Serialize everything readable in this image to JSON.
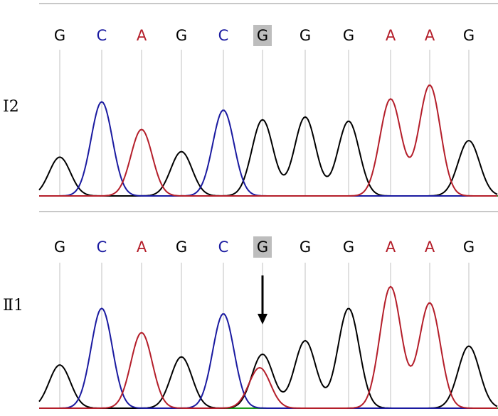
{
  "panels": [
    {
      "label": "Ⅰ2",
      "bases": [
        "G",
        "C",
        "A",
        "G",
        "C",
        "G",
        "G",
        "G",
        "A",
        "A",
        "G"
      ],
      "highlight_index": 5,
      "peaks": [
        {
          "base": "G",
          "height": 0.28
        },
        {
          "base": "C",
          "height": 0.68
        },
        {
          "base": "A",
          "height": 0.48
        },
        {
          "base": "G",
          "height": 0.32
        },
        {
          "base": "C",
          "height": 0.62
        },
        {
          "base": "G",
          "height": 0.55
        },
        {
          "base": "G",
          "height": 0.57
        },
        {
          "base": "G",
          "height": 0.54
        },
        {
          "base": "A",
          "height": 0.7
        },
        {
          "base": "A",
          "height": 0.8
        },
        {
          "base": "G",
          "height": 0.4
        }
      ],
      "arrow": false
    },
    {
      "label": "Ⅱ1",
      "bases": [
        "G",
        "C",
        "A",
        "G",
        "C",
        "G",
        "G",
        "G",
        "A",
        "A",
        "G"
      ],
      "highlight_index": 5,
      "peaks": [
        {
          "base": "G",
          "height": 0.32
        },
        {
          "base": "C",
          "height": 0.74
        },
        {
          "base": "A",
          "height": 0.56
        },
        {
          "base": "G",
          "height": 0.38
        },
        {
          "base": "C",
          "height": 0.7
        },
        {
          "base": "G",
          "height": 0.4,
          "secondary": {
            "base": "A",
            "height": 0.3
          }
        },
        {
          "base": "G",
          "height": 0.5
        },
        {
          "base": "G",
          "height": 0.74
        },
        {
          "base": "A",
          "height": 0.9
        },
        {
          "base": "A",
          "height": 0.78
        },
        {
          "base": "G",
          "height": 0.46
        }
      ],
      "arrow": true
    }
  ],
  "colors": {
    "G": "#000000",
    "C": "#1a1aa0",
    "A": "#b41e2a",
    "T": "#1a9a1a",
    "highlight_bg": "#bdbdbd",
    "divider": "#c8c8c8"
  }
}
